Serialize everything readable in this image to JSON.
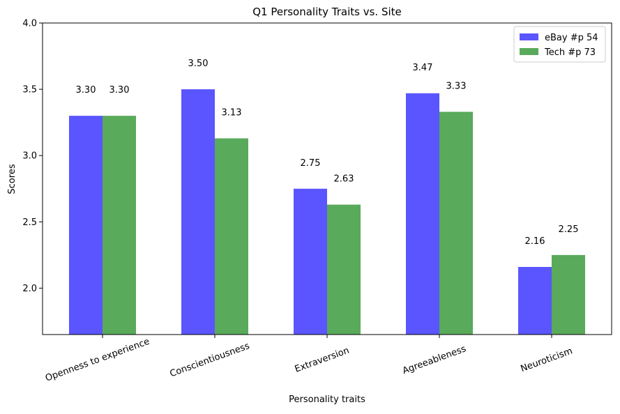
{
  "chart_data": {
    "type": "bar",
    "title": "Q1 Personality Traits vs. Site",
    "xlabel": "Personality traits",
    "ylabel": "Scores",
    "categories": [
      "Openness to experience",
      "Conscientiousness",
      "Extraversion",
      "Agreeableness",
      "Neuroticism"
    ],
    "series": [
      {
        "name": "eBay #p 54",
        "color": "#5a55ff",
        "values": [
          3.3,
          3.5,
          2.75,
          3.47,
          2.16
        ],
        "labels": [
          "3.30",
          "3.50",
          "2.75",
          "3.47",
          "2.16"
        ]
      },
      {
        "name": "Tech #p 73",
        "color": "#59aa5a",
        "values": [
          3.3,
          3.13,
          2.63,
          3.33,
          2.25
        ],
        "labels": [
          "3.30",
          "3.13",
          "2.63",
          "3.33",
          "2.25"
        ]
      }
    ],
    "ylim": [
      1.65,
      4.0
    ],
    "yticks": [
      2.0,
      2.5,
      3.0,
      3.5,
      4.0
    ],
    "ytick_labels": [
      "2.0",
      "2.5",
      "3.0",
      "3.5",
      "4.0"
    ],
    "xtick_rotation": 20,
    "grid": false,
    "legend_position": "top-right"
  }
}
